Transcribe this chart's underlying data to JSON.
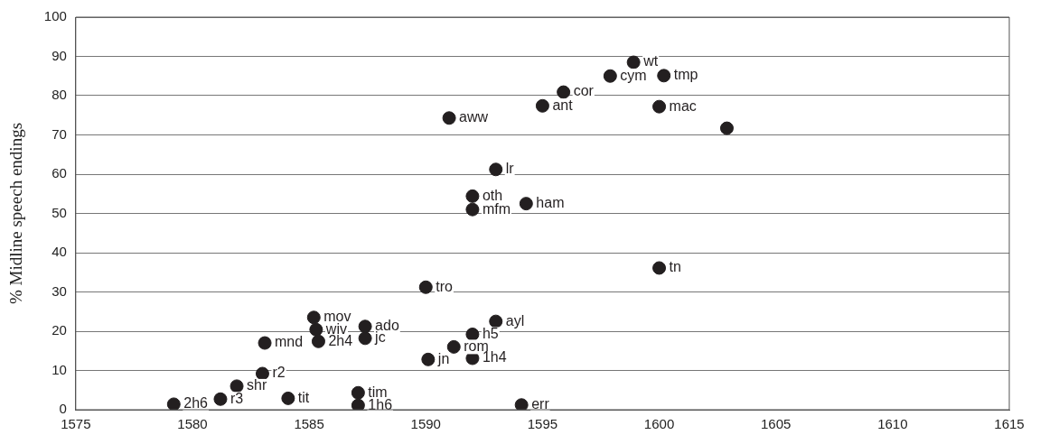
{
  "chart_data": {
    "type": "scatter",
    "ylabel": "% Midline speech endings",
    "x": [
      1579.2,
      1581.2,
      1581.9,
      1583.0,
      1583.1,
      1584.1,
      1585.2,
      1585.3,
      1585.4,
      1587.4,
      1587.4,
      1587.1,
      1587.1,
      1590.0,
      1600.0,
      1593.0,
      1592.0,
      1591.2,
      1590.1,
      1592.0,
      1594.1,
      1598.9,
      1597.9,
      1600.2,
      1595.9,
      1595.0,
      1600.0,
      1591.0,
      1602.9,
      1593.0,
      1592.0,
      1592.0,
      1594.3
    ],
    "values": [
      1.4,
      2.7,
      6.0,
      9.2,
      17.0,
      2.9,
      23.5,
      20.4,
      17.4,
      21.2,
      18.2,
      4.3,
      1.1,
      31.2,
      36.1,
      22.5,
      19.2,
      16.0,
      12.8,
      13.1,
      1.2,
      88.5,
      85.0,
      85.1,
      80.9,
      77.4,
      77.2,
      74.3,
      71.7,
      61.2,
      54.4,
      51.0,
      52.5
    ],
    "value_labels": [
      "2h6",
      "r3",
      "shr",
      "r2",
      "mnd",
      "tit",
      "mov",
      "wiv",
      "2h4",
      "ado",
      "jc",
      "tim",
      "1h6",
      "tro",
      "tn",
      "ayl",
      "h5",
      "rom",
      "jn",
      "1h4",
      "err",
      "wt",
      "cym",
      "tmp",
      "cor",
      "ant",
      "mac",
      "aww",
      null,
      "lr",
      "oth",
      "mfm",
      "ham"
    ],
    "color": "#231f20",
    "marker": "circle",
    "xlim": [
      1575,
      1615
    ],
    "xticks": [
      1575,
      1580,
      1585,
      1590,
      1595,
      1600,
      1605,
      1610,
      1615
    ],
    "ylim": [
      0,
      100
    ],
    "yticks": [
      0,
      10,
      20,
      30,
      40,
      50,
      60,
      70,
      80,
      90,
      100
    ],
    "grid": "y"
  }
}
